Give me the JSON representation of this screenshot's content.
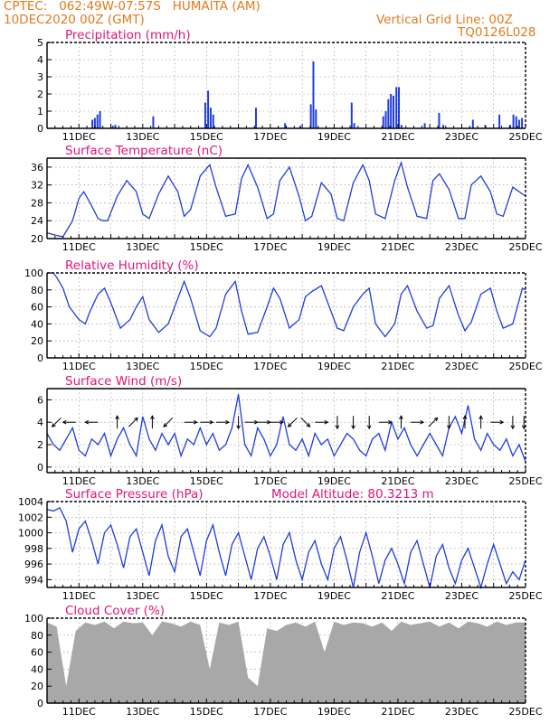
{
  "header": {
    "left_line1": "CPTEC:   062:49W-07:57S   HUMAITA (AM)",
    "left_line2": "10DEC2020 00Z (GMT)",
    "right_line1": "Vertical Grid Line: 00Z",
    "right_line2": "TQ0126L028"
  },
  "colors": {
    "header": "#e07a1f",
    "title": "#e0157a",
    "series": "#1f3de0",
    "cloud": "#a8a8a8"
  },
  "x_ticks": [
    "11DEC",
    "13DEC",
    "15DEC",
    "17DEC",
    "19DEC",
    "21DEC",
    "23DEC",
    "25DEC"
  ],
  "chart_data": [
    {
      "type": "bar",
      "title": "Precipitation (mm/h)",
      "ylim": [
        0,
        5
      ],
      "yticks": [
        0,
        1,
        2,
        3,
        4,
        5
      ],
      "unit": "mm/h",
      "x": [
        1.42,
        1.5,
        1.58,
        1.66,
        2.06,
        2.14,
        3.33,
        4.96,
        5.05,
        5.13,
        5.21,
        6.55,
        7.46,
        7.94,
        8.27,
        8.35,
        8.43,
        9.55,
        9.63,
        10.54,
        10.62,
        10.7,
        10.78,
        10.86,
        10.95,
        11.03,
        11.11,
        11.84,
        12.29,
        12.42,
        13.35,
        13.74,
        14.18,
        14.52,
        14.62,
        14.71,
        14.8,
        14.89
      ],
      "values": [
        0.5,
        0.6,
        0.8,
        1.0,
        0.15,
        0.2,
        0.7,
        1.5,
        2.2,
        1.2,
        0.8,
        1.2,
        0.3,
        0.15,
        1.4,
        3.9,
        1.1,
        1.5,
        0.3,
        0.7,
        1.0,
        1.7,
        2.0,
        1.9,
        2.4,
        2.4,
        0.2,
        0.3,
        0.9,
        0.2,
        0.5,
        0.2,
        0.8,
        0.2,
        0.8,
        0.7,
        0.5,
        0.6
      ]
    },
    {
      "type": "line",
      "title": "Surface Temperature (nC)",
      "ylim": [
        20,
        38
      ],
      "yticks": [
        20,
        24,
        28,
        32,
        36
      ],
      "unit": "C",
      "x": [
        0,
        0.15,
        0.3,
        0.5,
        0.8,
        1.0,
        1.15,
        1.35,
        1.6,
        1.75,
        1.9,
        2.2,
        2.5,
        2.8,
        3.0,
        3.2,
        3.5,
        3.8,
        4.1,
        4.3,
        4.5,
        4.8,
        5.1,
        5.3,
        5.6,
        5.9,
        6.1,
        6.3,
        6.6,
        6.9,
        7.1,
        7.3,
        7.6,
        7.9,
        8.1,
        8.3,
        8.6,
        8.9,
        9.1,
        9.3,
        9.6,
        9.9,
        10.1,
        10.3,
        10.6,
        10.9,
        11.1,
        11.3,
        11.6,
        11.9,
        12.1,
        12.3,
        12.6,
        12.9,
        13.1,
        13.3,
        13.6,
        13.9,
        14.1,
        14.3,
        14.6,
        14.9,
        15.0
      ],
      "values": [
        21.3,
        21.0,
        20.7,
        20.4,
        24.0,
        29.0,
        30.5,
        28.0,
        24.5,
        24.0,
        24.0,
        29.5,
        33.0,
        30.5,
        25.5,
        24.5,
        30.0,
        34.0,
        30.5,
        25.0,
        26.5,
        34.0,
        36.5,
        31.5,
        25.0,
        25.5,
        33.5,
        36.5,
        31.5,
        24.5,
        25.5,
        33.0,
        36.0,
        29.5,
        24.0,
        25.0,
        32.5,
        30.0,
        24.5,
        24.0,
        32.5,
        36.5,
        33.0,
        25.5,
        24.5,
        33.0,
        37.0,
        31.5,
        25.0,
        24.5,
        33.0,
        34.5,
        31.0,
        24.5,
        24.5,
        32.0,
        34.0,
        30.5,
        25.5,
        25.0,
        31.5,
        30.0,
        29.5
      ]
    },
    {
      "type": "line",
      "title": "Relative Humidity (%)",
      "ylim": [
        0,
        100
      ],
      "yticks": [
        0,
        20,
        40,
        60,
        80,
        100
      ],
      "unit": "%",
      "x": [
        0,
        0.2,
        0.3,
        0.5,
        0.7,
        1.0,
        1.2,
        1.35,
        1.6,
        1.8,
        2.0,
        2.3,
        2.6,
        2.8,
        3.0,
        3.2,
        3.5,
        3.8,
        4.1,
        4.3,
        4.5,
        4.8,
        5.1,
        5.3,
        5.6,
        5.9,
        6.1,
        6.3,
        6.6,
        6.9,
        7.1,
        7.3,
        7.6,
        7.9,
        8.1,
        8.3,
        8.6,
        8.9,
        9.1,
        9.3,
        9.6,
        9.9,
        10.1,
        10.3,
        10.6,
        10.9,
        11.1,
        11.3,
        11.6,
        11.9,
        12.1,
        12.3,
        12.6,
        12.9,
        13.1,
        13.3,
        13.6,
        13.9,
        14.1,
        14.3,
        14.6,
        14.9,
        15.0
      ],
      "values": [
        100,
        100,
        95,
        82,
        60,
        45,
        40,
        55,
        75,
        82,
        65,
        35,
        45,
        60,
        72,
        45,
        30,
        40,
        70,
        90,
        70,
        32,
        25,
        35,
        75,
        90,
        55,
        28,
        30,
        60,
        82,
        70,
        35,
        45,
        72,
        78,
        85,
        55,
        35,
        32,
        60,
        75,
        82,
        40,
        25,
        40,
        75,
        85,
        55,
        35,
        38,
        70,
        85,
        50,
        32,
        42,
        75,
        82,
        55,
        35,
        40,
        82,
        80
      ]
    },
    {
      "type": "line",
      "title": "Surface Wind (m/s)",
      "ylim": [
        -0.5,
        7
      ],
      "yticks": [
        0,
        2,
        4,
        6
      ],
      "unit": "m/s",
      "x": [
        0,
        0.2,
        0.4,
        0.6,
        0.8,
        1.0,
        1.2,
        1.4,
        1.6,
        1.8,
        2.0,
        2.2,
        2.4,
        2.6,
        2.8,
        3.0,
        3.2,
        3.4,
        3.6,
        3.8,
        4.0,
        4.2,
        4.4,
        4.6,
        4.8,
        5.0,
        5.2,
        5.4,
        5.6,
        5.8,
        6.0,
        6.2,
        6.4,
        6.6,
        6.8,
        7.0,
        7.2,
        7.4,
        7.6,
        7.8,
        8.0,
        8.2,
        8.4,
        8.6,
        8.8,
        9.0,
        9.2,
        9.4,
        9.6,
        9.8,
        10.0,
        10.2,
        10.4,
        10.6,
        10.8,
        11.0,
        11.2,
        11.4,
        11.6,
        11.8,
        12.0,
        12.2,
        12.4,
        12.6,
        12.8,
        13.0,
        13.2,
        13.4,
        13.6,
        13.8,
        14.0,
        14.2,
        14.4,
        14.6,
        14.8,
        15.0
      ],
      "values": [
        3.0,
        2.0,
        1.5,
        2.5,
        3.5,
        1.5,
        1.0,
        2.5,
        2.0,
        3.0,
        1.0,
        2.5,
        3.5,
        2.0,
        1.0,
        4.5,
        2.5,
        1.5,
        3.0,
        2.0,
        3.0,
        1.0,
        2.5,
        2.0,
        3.5,
        2.0,
        3.0,
        1.5,
        2.0,
        3.5,
        6.5,
        2.0,
        1.0,
        3.5,
        2.5,
        1.0,
        2.0,
        4.5,
        2.0,
        1.5,
        2.5,
        1.0,
        3.0,
        2.0,
        2.5,
        1.0,
        2.0,
        3.0,
        2.5,
        1.5,
        1.0,
        2.5,
        3.0,
        1.5,
        4.0,
        2.5,
        3.5,
        2.0,
        1.0,
        2.0,
        3.0,
        2.0,
        1.0,
        3.5,
        4.5,
        3.0,
        5.5,
        2.5,
        1.5,
        3.0,
        2.0,
        1.5,
        2.5,
        1.0,
        2.0,
        0.5
      ],
      "arrows": [
        {
          "x": 0.3,
          "dir": "southwest"
        },
        {
          "x": 0.7,
          "dir": "west"
        },
        {
          "x": 1.4,
          "dir": "west"
        },
        {
          "x": 2.2,
          "dir": "north"
        },
        {
          "x": 2.7,
          "dir": "northeast"
        },
        {
          "x": 3.3,
          "dir": "north"
        },
        {
          "x": 3.8,
          "dir": "southwest"
        },
        {
          "x": 4.5,
          "dir": "east"
        },
        {
          "x": 5.0,
          "dir": "east"
        },
        {
          "x": 5.5,
          "dir": "east"
        },
        {
          "x": 6.0,
          "dir": "south"
        },
        {
          "x": 6.4,
          "dir": "east"
        },
        {
          "x": 6.8,
          "dir": "east"
        },
        {
          "x": 7.2,
          "dir": "east"
        },
        {
          "x": 7.7,
          "dir": "southwest"
        },
        {
          "x": 8.1,
          "dir": "southeast"
        },
        {
          "x": 8.6,
          "dir": "east"
        },
        {
          "x": 9.1,
          "dir": "south"
        },
        {
          "x": 9.6,
          "dir": "south"
        },
        {
          "x": 10.1,
          "dir": "south"
        },
        {
          "x": 10.6,
          "dir": "east"
        },
        {
          "x": 11.1,
          "dir": "north"
        },
        {
          "x": 11.6,
          "dir": "east"
        },
        {
          "x": 12.1,
          "dir": "northeast"
        },
        {
          "x": 12.6,
          "dir": "south"
        },
        {
          "x": 13.1,
          "dir": "north"
        },
        {
          "x": 13.6,
          "dir": "north"
        },
        {
          "x": 14.1,
          "dir": "east"
        },
        {
          "x": 14.6,
          "dir": "south"
        },
        {
          "x": 14.95,
          "dir": "south"
        }
      ]
    },
    {
      "type": "line",
      "title": "Surface Pressure (hPa)",
      "annotation": "Model Altitude: 80.3213 m",
      "ylim": [
        993,
        1004
      ],
      "yticks": [
        994,
        996,
        998,
        1000,
        1002,
        1004
      ],
      "unit": "hPa",
      "x": [
        0,
        0.2,
        0.4,
        0.6,
        0.8,
        1.0,
        1.2,
        1.4,
        1.6,
        1.8,
        2.0,
        2.2,
        2.4,
        2.6,
        2.8,
        3.0,
        3.2,
        3.4,
        3.6,
        3.8,
        4.0,
        4.2,
        4.4,
        4.6,
        4.8,
        5.0,
        5.2,
        5.4,
        5.6,
        5.8,
        6.0,
        6.2,
        6.4,
        6.6,
        6.8,
        7.0,
        7.2,
        7.4,
        7.6,
        7.8,
        8.0,
        8.2,
        8.4,
        8.6,
        8.8,
        9.0,
        9.2,
        9.4,
        9.6,
        9.8,
        10.0,
        10.2,
        10.4,
        10.6,
        10.8,
        11.0,
        11.2,
        11.4,
        11.6,
        11.8,
        12.0,
        12.2,
        12.4,
        12.6,
        12.8,
        13.0,
        13.2,
        13.4,
        13.6,
        13.8,
        14.0,
        14.2,
        14.4,
        14.6,
        14.8,
        15.0
      ],
      "values": [
        1003.0,
        1002.8,
        1003.2,
        1001.5,
        997.5,
        1000.5,
        1001.5,
        999.0,
        996.0,
        1000.0,
        1001.0,
        998.5,
        995.5,
        999.5,
        1000.5,
        997.5,
        994.5,
        999.0,
        1001.0,
        997.0,
        995.0,
        999.5,
        1000.5,
        997.5,
        994.5,
        999.0,
        1001.0,
        997.5,
        994.5,
        998.5,
        1000.0,
        997.0,
        994.0,
        998.0,
        999.5,
        997.0,
        994.0,
        998.5,
        1000.0,
        996.5,
        994.0,
        997.5,
        999.0,
        996.0,
        994.0,
        998.0,
        999.5,
        996.5,
        993.0,
        997.5,
        1000.0,
        997.0,
        993.5,
        996.5,
        998.0,
        996.0,
        993.5,
        997.5,
        999.0,
        996.0,
        993.0,
        997.0,
        998.5,
        995.5,
        993.5,
        996.5,
        998.0,
        995.5,
        993.0,
        996.0,
        998.5,
        996.0,
        993.5,
        995.0,
        994.0,
        996.5
      ]
    },
    {
      "type": "area",
      "title": "Cloud Cover (%)",
      "ylim": [
        0,
        100
      ],
      "yticks": [
        0,
        20,
        40,
        60,
        80,
        100
      ],
      "unit": "%",
      "x": [
        0,
        0.3,
        0.6,
        0.9,
        1.2,
        1.5,
        1.8,
        2.1,
        2.4,
        2.7,
        3.0,
        3.3,
        3.6,
        3.9,
        4.2,
        4.5,
        4.8,
        5.1,
        5.4,
        5.7,
        6.0,
        6.3,
        6.6,
        6.9,
        7.2,
        7.5,
        7.8,
        8.1,
        8.4,
        8.7,
        9.0,
        9.3,
        9.6,
        9.9,
        10.2,
        10.5,
        10.8,
        11.1,
        11.4,
        11.7,
        12.0,
        12.3,
        12.6,
        12.9,
        13.2,
        13.5,
        13.8,
        14.1,
        14.4,
        14.7,
        15.0
      ],
      "values": [
        95,
        90,
        20,
        85,
        95,
        92,
        96,
        88,
        96,
        94,
        95,
        80,
        96,
        94,
        90,
        96,
        92,
        40,
        95,
        92,
        96,
        30,
        20,
        88,
        85,
        92,
        95,
        90,
        96,
        60,
        96,
        92,
        95,
        94,
        90,
        95,
        85,
        96,
        92,
        94,
        96,
        90,
        95,
        88,
        96,
        94,
        90,
        96,
        92,
        95,
        95
      ]
    }
  ]
}
